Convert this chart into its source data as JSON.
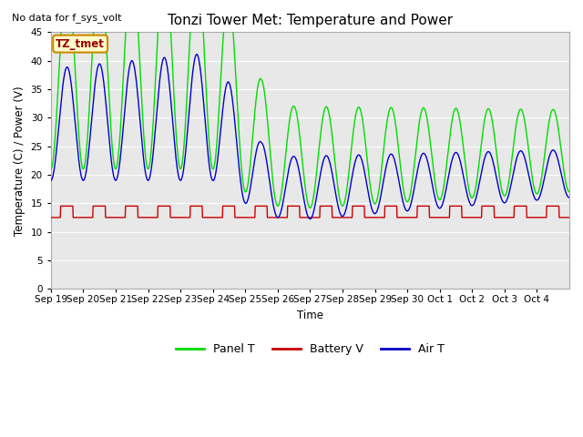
{
  "title": "Tonzi Tower Met: Temperature and Power",
  "ylabel": "Temperature (C) / Power (V)",
  "xlabel": "Time",
  "top_left_text": "No data for f_sys_volt",
  "annotation_text": "TZ_tmet",
  "ylim": [
    0,
    45
  ],
  "yticks": [
    0,
    5,
    10,
    15,
    20,
    25,
    30,
    35,
    40,
    45
  ],
  "x_labels": [
    "Sep 19",
    "Sep 20",
    "Sep 21",
    "Sep 22",
    "Sep 23",
    "Sep 24",
    "Sep 25",
    "Sep 26",
    "Sep 27",
    "Sep 28",
    "Sep 29",
    "Sep 30",
    "Oct 1",
    "Oct 2",
    "Oct 3",
    "Oct 4"
  ],
  "num_days": 16,
  "panel_color": "#00dd00",
  "battery_color": "#cc0000",
  "air_color": "#0000cc",
  "plot_bg_color": "#e8e8e8",
  "grid_color": "#ffffff",
  "legend_panel": "Panel T",
  "legend_battery": "Battery V",
  "legend_air": "Air T",
  "annotation_bg": "#ffffcc",
  "annotation_border": "#cc8800",
  "annotation_color": "#990000"
}
